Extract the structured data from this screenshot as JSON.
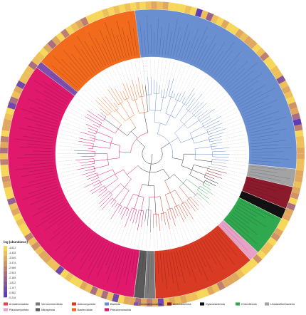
{
  "abundance_scale": {
    "title": "log (abundance)",
    "ticks": [
      "-4.821",
      "-4.425",
      "-3.540",
      "-3.474",
      "-2.969",
      "-2.543",
      "-2.189",
      "-1.812",
      "-1.147",
      "-0.562",
      "-0.216"
    ],
    "colors": [
      "#f6d75a",
      "#edc05a",
      "#e0a85e",
      "#cf9366",
      "#bd7f72",
      "#a96f80",
      "#97628f",
      "#84579d",
      "#7249aa",
      "#5f3bb6"
    ]
  },
  "phyla": [
    {
      "name": "Armatimonadota",
      "color": "#e0474c",
      "share": 0
    },
    {
      "name": "Verrucomicrobiota",
      "color": "#7b7b7b",
      "share": 0.012
    },
    {
      "name": "Actinomycetota",
      "color": "#d93a24",
      "share": 0.115
    },
    {
      "name": "Bacillota",
      "color": "#6a8fd0",
      "share": 0.285
    },
    {
      "name": "Gemmatimonadota",
      "color": "#7f4fb0",
      "share": 0.008
    },
    {
      "name": "Acidobacteriota",
      "color": "#8b1a2b",
      "share": 0.025
    },
    {
      "name": "Cyanobacteriota",
      "color": "#111111",
      "share": 0.012
    },
    {
      "name": "Chloroflexota",
      "color": "#2fa84f",
      "share": 0.045
    },
    {
      "name": "Unclassified bacteria",
      "color": "#a3a3a3",
      "share": 0.02
    },
    {
      "name": "Planctomycetota",
      "color": "#e8a1c4",
      "share": 0.012
    },
    {
      "name": "Nitrospirota",
      "color": "#5a5a5a",
      "share": 0.012
    },
    {
      "name": "Bacteroidota",
      "color": "#f26a1b",
      "share": 0.12
    },
    {
      "name": "Pseudomonadota",
      "color": "#e0196c",
      "share": 0.33
    }
  ],
  "legend_layout": [
    [
      "Armatimonadota",
      "Verrucomicrobiota",
      "Actinomycetota",
      "Bacillota",
      "Gemmatimonadota",
      "Acidobacteriota",
      "Cyanobacteriota",
      "Chloroflexota",
      "Unclassified bacteria"
    ],
    [
      "Planctomycetota",
      "Nitrospirota",
      "Bacteroidota",
      "Pseudomonadota"
    ]
  ]
}
